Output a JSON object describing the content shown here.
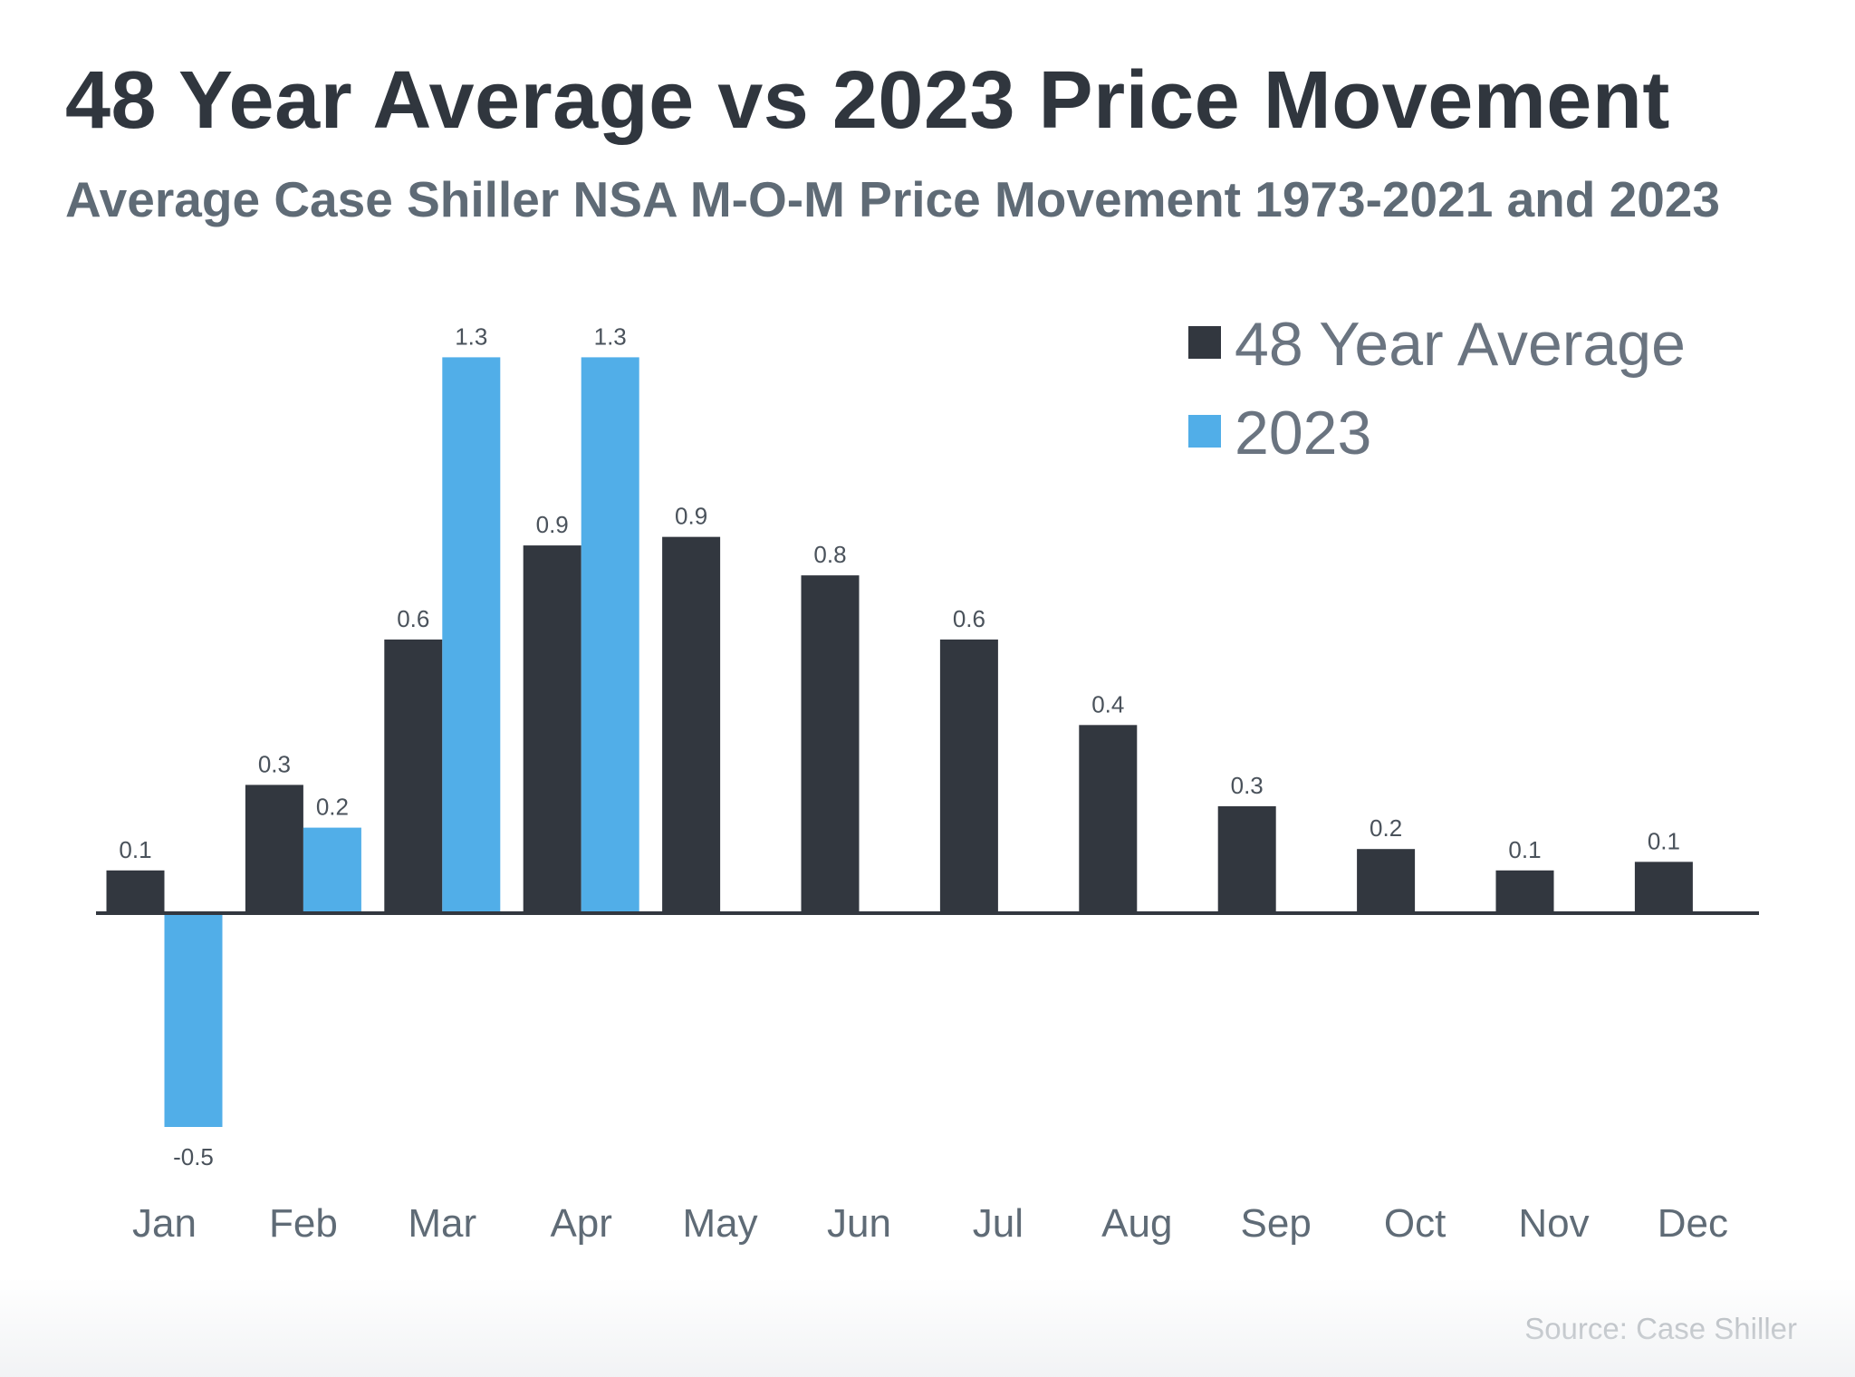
{
  "title": "48 Year Average vs 2023 Price Movement",
  "subtitle": "Average Case Shiller NSA M-O-M Price Movement 1973-2021 and 2023",
  "source": "Source: Case Shiller",
  "colors": {
    "avg": "#32373f",
    "y2023": "#51aee8",
    "axis": "#32373f"
  },
  "chart_data": {
    "type": "bar",
    "title": "48 Year Average vs 2023 Price Movement",
    "subtitle": "Average Case Shiller NSA M-O-M Price Movement 1973-2021 and 2023",
    "xlabel": "",
    "ylabel": "",
    "ylim": [
      -0.5,
      1.3
    ],
    "grid": false,
    "legend_position": "top-right",
    "categories": [
      "Jan",
      "Feb",
      "Mar",
      "Apr",
      "May",
      "Jun",
      "Jul",
      "Aug",
      "Sep",
      "Oct",
      "Nov",
      "Dec"
    ],
    "series": [
      {
        "name": "48 Year Average",
        "color": "#32373f",
        "values": [
          0.1,
          0.3,
          0.6,
          0.9,
          0.9,
          0.8,
          0.6,
          0.4,
          0.3,
          0.2,
          0.1,
          0.1
        ],
        "heights": [
          0.1,
          0.3,
          0.64,
          0.86,
          0.88,
          0.79,
          0.64,
          0.44,
          0.25,
          0.15,
          0.1,
          0.12
        ]
      },
      {
        "name": "2023",
        "color": "#51aee8",
        "values": [
          -0.5,
          0.2,
          1.3,
          1.3,
          null,
          null,
          null,
          null,
          null,
          null,
          null,
          null
        ],
        "heights": [
          -0.5,
          0.2,
          1.3,
          1.3,
          null,
          null,
          null,
          null,
          null,
          null,
          null,
          null
        ]
      }
    ]
  }
}
